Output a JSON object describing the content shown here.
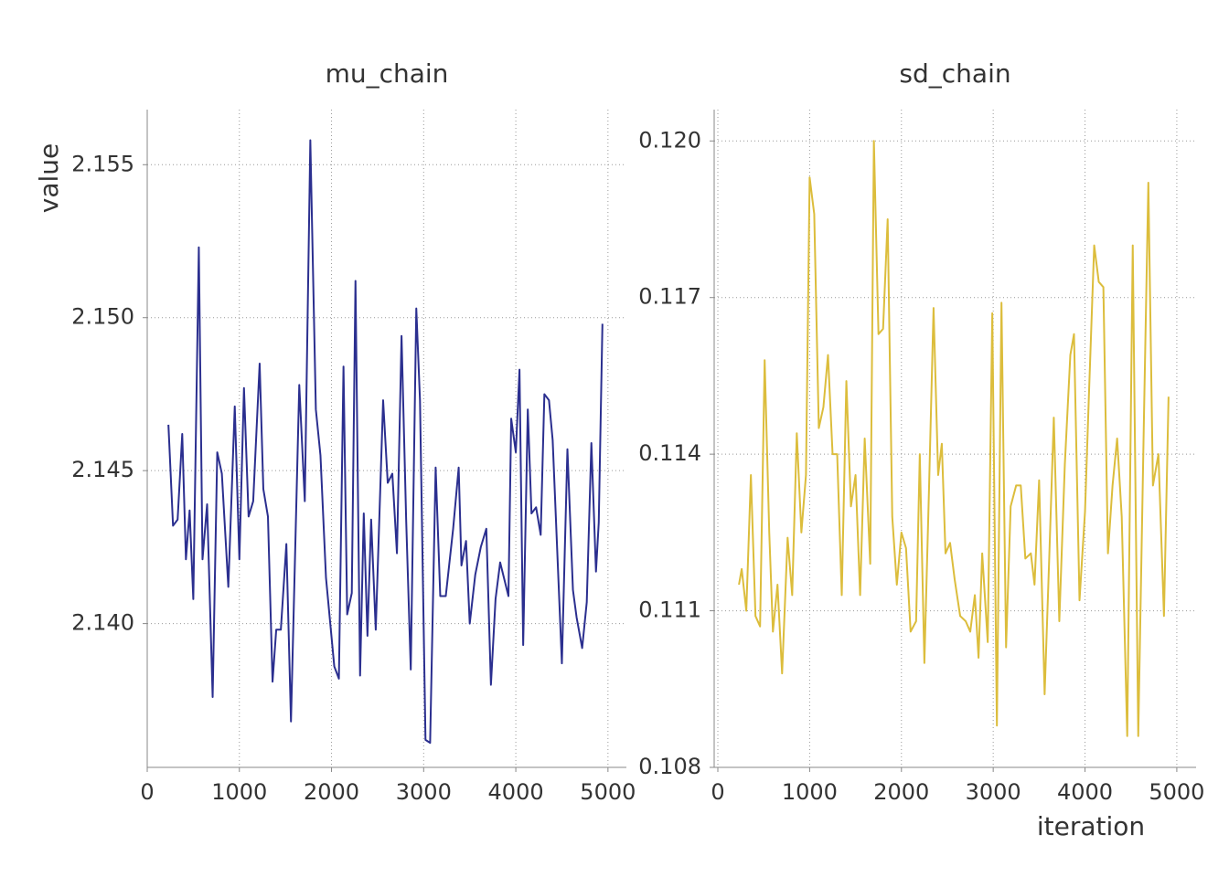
{
  "chart_data": [
    {
      "type": "line",
      "title": "mu_chain",
      "ylabel": "value",
      "x": [
        230,
        280,
        330,
        380,
        420,
        460,
        500,
        560,
        600,
        650,
        710,
        760,
        810,
        880,
        950,
        1000,
        1050,
        1100,
        1150,
        1220,
        1260,
        1310,
        1360,
        1400,
        1450,
        1510,
        1560,
        1650,
        1710,
        1770,
        1830,
        1880,
        1940,
        2030,
        2080,
        2130,
        2170,
        2220,
        2260,
        2310,
        2350,
        2390,
        2430,
        2480,
        2560,
        2610,
        2660,
        2710,
        2760,
        2810,
        2860,
        2920,
        2960,
        3020,
        3070,
        3130,
        3180,
        3240,
        3320,
        3380,
        3410,
        3460,
        3500,
        3560,
        3620,
        3680,
        3730,
        3780,
        3830,
        3920,
        3950,
        4000,
        4040,
        4080,
        4130,
        4170,
        4220,
        4270,
        4310,
        4360,
        4400,
        4500,
        4560,
        4620,
        4660,
        4720,
        4770,
        4820,
        4870,
        4900,
        4940
      ],
      "series": [
        {
          "color": "#2b2f8f",
          "values": [
            2.1465,
            2.1432,
            2.1434,
            2.1462,
            2.1421,
            2.1437,
            2.1408,
            2.1523,
            2.1421,
            2.1439,
            2.1376,
            2.1456,
            2.1449,
            2.1412,
            2.1471,
            2.1421,
            2.1477,
            2.1435,
            2.144,
            2.1485,
            2.1444,
            2.1435,
            2.1381,
            2.1398,
            2.1398,
            2.1426,
            2.1368,
            2.1478,
            2.144,
            2.1558,
            2.147,
            2.1455,
            2.1415,
            2.1386,
            2.1382,
            2.1484,
            2.1403,
            2.141,
            2.1512,
            2.1383,
            2.1436,
            2.1396,
            2.1434,
            2.1398,
            2.1473,
            2.1446,
            2.1449,
            2.1423,
            2.1494,
            2.1434,
            2.1385,
            2.1503,
            2.1473,
            2.1362,
            2.1361,
            2.1451,
            2.1409,
            2.1409,
            2.1431,
            2.1451,
            2.1419,
            2.1427,
            2.14,
            2.1416,
            2.1425,
            2.1431,
            2.138,
            2.1408,
            2.142,
            2.1409,
            2.1467,
            2.1456,
            2.1483,
            2.1393,
            2.147,
            2.1436,
            2.1438,
            2.1429,
            2.1475,
            2.1473,
            2.146,
            2.1387,
            2.1457,
            2.1411,
            2.1402,
            2.1392,
            2.1407,
            2.1459,
            2.1417,
            2.1433,
            2.1498
          ]
        }
      ],
      "xlim": [
        0,
        5200
      ],
      "ylim": [
        2.1353,
        2.1568
      ],
      "xticks": [
        0,
        1000,
        2000,
        3000,
        4000,
        5000
      ],
      "yticks": [
        {
          "value": 2.14,
          "label": "2.140"
        },
        2.145,
        {
          "value": 2.15,
          "label": "2.150"
        },
        2.155
      ],
      "grid": true
    },
    {
      "type": "line",
      "title": "sd_chain",
      "xlabel": "iteration",
      "x": [
        230,
        260,
        310,
        360,
        410,
        460,
        510,
        560,
        600,
        650,
        700,
        760,
        810,
        860,
        910,
        960,
        1000,
        1050,
        1100,
        1150,
        1200,
        1250,
        1300,
        1350,
        1400,
        1450,
        1500,
        1550,
        1600,
        1660,
        1700,
        1750,
        1800,
        1850,
        1900,
        1950,
        2000,
        2050,
        2100,
        2160,
        2200,
        2250,
        2300,
        2350,
        2400,
        2440,
        2480,
        2530,
        2580,
        2640,
        2700,
        2750,
        2800,
        2840,
        2880,
        2940,
        2990,
        3040,
        3090,
        3140,
        3190,
        3250,
        3300,
        3350,
        3410,
        3450,
        3500,
        3560,
        3610,
        3660,
        3720,
        3780,
        3840,
        3880,
        3940,
        4000,
        4040,
        4100,
        4150,
        4200,
        4250,
        4300,
        4350,
        4400,
        4460,
        4520,
        4580,
        4640,
        4690,
        4740,
        4800,
        4860,
        4910
      ],
      "series": [
        {
          "color": "#dcbd3c",
          "values": [
            0.1115,
            0.1118,
            0.111,
            0.1136,
            0.1109,
            0.1107,
            0.1158,
            0.1125,
            0.1106,
            0.1115,
            0.1098,
            0.1124,
            0.1113,
            0.1144,
            0.1125,
            0.1136,
            0.1193,
            0.1186,
            0.1145,
            0.1149,
            0.1159,
            0.114,
            0.114,
            0.1113,
            0.1154,
            0.113,
            0.1136,
            0.1113,
            0.1143,
            0.1119,
            0.12,
            0.1163,
            0.1164,
            0.1185,
            0.1128,
            0.1115,
            0.1125,
            0.1122,
            0.1106,
            0.1108,
            0.114,
            0.11,
            0.1133,
            0.1168,
            0.1136,
            0.1142,
            0.1121,
            0.1123,
            0.1116,
            0.1109,
            0.1108,
            0.1106,
            0.1113,
            0.1101,
            0.1121,
            0.1104,
            0.1167,
            0.1088,
            0.1169,
            0.1103,
            0.113,
            0.1134,
            0.1134,
            0.112,
            0.1121,
            0.1115,
            0.1135,
            0.1094,
            0.112,
            0.1147,
            0.1108,
            0.1138,
            0.1159,
            0.1163,
            0.1112,
            0.1129,
            0.115,
            0.118,
            0.1173,
            0.1172,
            0.1121,
            0.1134,
            0.1143,
            0.1128,
            0.1086,
            0.118,
            0.1086,
            0.1145,
            0.1192,
            0.1134,
            0.114,
            0.1109,
            0.1151
          ]
        }
      ],
      "xlim": [
        -40,
        5210
      ],
      "ylim": [
        0.108,
        0.1206
      ],
      "xticks": [
        0,
        1000,
        2000,
        3000,
        4000,
        5000
      ],
      "yticks": [
        0.108,
        0.111,
        0.114,
        0.117,
        {
          "value": 0.12,
          "label": "0.120"
        }
      ],
      "grid": true
    }
  ]
}
